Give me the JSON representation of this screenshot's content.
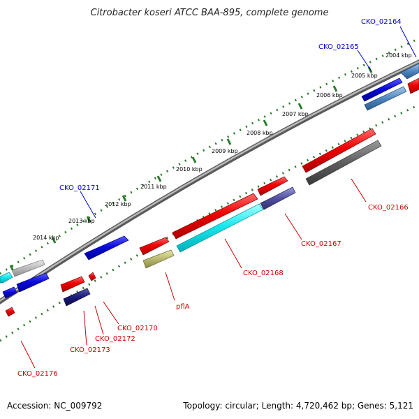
{
  "title": "Citrobacter koseri ATCC BAA-895, complete genome",
  "footer": {
    "accession": "Accession: NC_009792",
    "topology": "Topology: circular; Length: 4,720,462 bp; Genes: 5,121"
  },
  "colors": {
    "forward_label": "#0000cc",
    "reverse_label": "#cc0000",
    "backbone": "#888888",
    "tick": "#2a7a2a"
  },
  "kbp_ticks": [
    "2014 kbp",
    "2013 kbp",
    "2012 kbp",
    "2011 kbp",
    "2010 kbp",
    "2009 kbp",
    "2008 kbp",
    "2007 kbp",
    "2006 kbp",
    "2005 kbp",
    "2004 kbp"
  ],
  "genes": [
    {
      "name": "CKO_02164",
      "strand": "+"
    },
    {
      "name": "CKO_02165",
      "strand": "+"
    },
    {
      "name": "CKO_02166",
      "strand": "-"
    },
    {
      "name": "CKO_02167",
      "strand": "-"
    },
    {
      "name": "CKO_02168",
      "strand": "-"
    },
    {
      "name": "pflA",
      "strand": "-"
    },
    {
      "name": "CKO_02170",
      "strand": "-"
    },
    {
      "name": "CKO_02171",
      "strand": "+"
    },
    {
      "name": "CKO_02172",
      "strand": "-"
    },
    {
      "name": "CKO_02173",
      "strand": "-"
    },
    {
      "name": "CKO_02176",
      "strand": "-"
    }
  ]
}
